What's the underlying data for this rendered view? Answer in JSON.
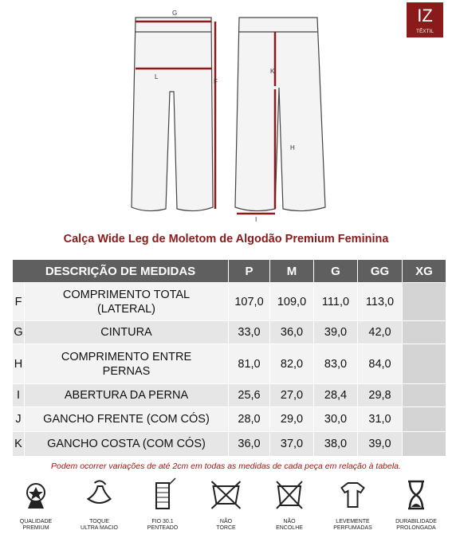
{
  "logo": {
    "mark": "IZ",
    "sub": "TÊXTIL"
  },
  "diagram": {
    "labels": {
      "G": "G",
      "L": "L",
      "F": "F",
      "K": "K",
      "H": "H",
      "I": "I"
    }
  },
  "title": "Calça Wide Leg de Moletom de Algodão Premium Feminina",
  "table": {
    "header": [
      "DESCRIÇÃO DE MEDIDAS",
      "P",
      "M",
      "G",
      "GG",
      "XG"
    ],
    "rows": [
      [
        "F",
        [
          "COMPRIMENTO  TOTAL",
          "(LATERAL)"
        ],
        "107,0",
        "109,0",
        "111,0",
        "113,0",
        ""
      ],
      [
        "G",
        [
          "CINTURA"
        ],
        "33,0",
        "36,0",
        "39,0",
        "42,0",
        ""
      ],
      [
        "H",
        [
          "COMPRIMENTO  ENTRE",
          "PERNAS"
        ],
        "81,0",
        "82,0",
        "83,0",
        "84,0",
        ""
      ],
      [
        "I",
        [
          "ABERTURA DA PERNA"
        ],
        "25,6",
        "27,0",
        "28,4",
        "29,8",
        ""
      ],
      [
        "J",
        [
          "GANCHO FRENTE (COM CÓS)"
        ],
        "28,0",
        "29,0",
        "30,0",
        "31,0",
        ""
      ],
      [
        "K",
        [
          "GANCHO COSTA (COM CÓS)"
        ],
        "36,0",
        "37,0",
        "38,0",
        "39,0",
        ""
      ]
    ]
  },
  "note": "Podem ocorrer variações de até 2cm em todas as medidas de cada peça em relação à tabela.",
  "icons": [
    [
      "QUALIDADE",
      "PREMIUM"
    ],
    [
      "TOQUE",
      "ULTRA MACIO"
    ],
    [
      "FIO 30.1",
      "PENTEADO"
    ],
    [
      "NÃO",
      "TORCE"
    ],
    [
      "NÃO",
      "ENCOLHE"
    ],
    [
      "LEVEMENTE",
      "PERFUMADAS"
    ],
    [
      "DURABILIDADE",
      "PROLONGADA"
    ]
  ]
}
